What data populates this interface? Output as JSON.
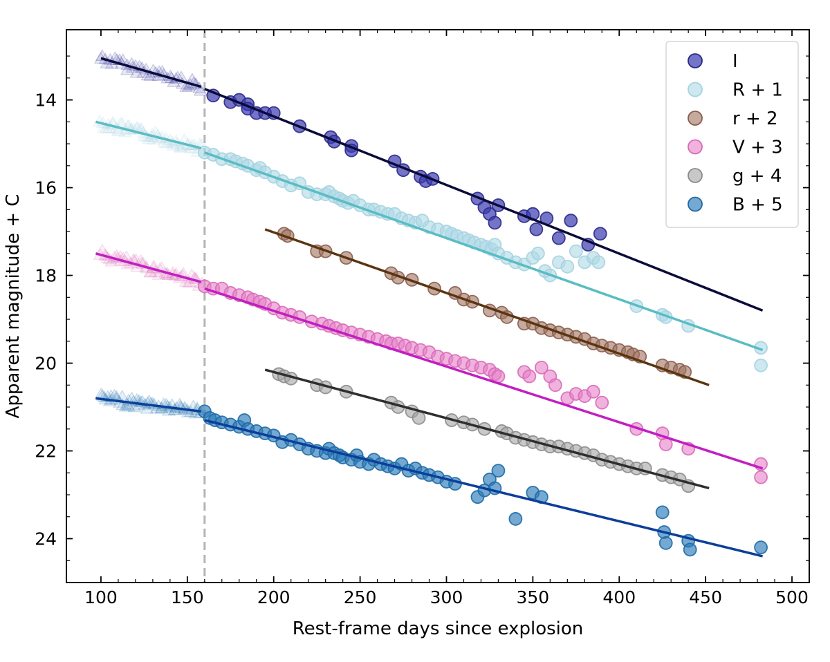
{
  "chart_data": {
    "type": "scatter",
    "title": "",
    "xlabel": "Rest-frame days since explosion",
    "ylabel": "Apparent magnitude + C",
    "xlim": [
      80,
      510
    ],
    "ylim": [
      12.4,
      25.0
    ],
    "y_inverted": true,
    "xticks": [
      100,
      150,
      200,
      250,
      300,
      350,
      400,
      450,
      500
    ],
    "yticks": [
      14,
      16,
      18,
      20,
      22,
      24
    ],
    "vline": {
      "x": 160,
      "style": "dashed",
      "color": "#b4b4b4"
    },
    "legend_position": "top-right",
    "series": [
      {
        "name": "I",
        "label": "I",
        "color": "#3b3bb0",
        "edge": "#2a2a8a",
        "line_color": "#0b0b3b",
        "alpha": 0.7,
        "early_range": [
          100,
          158
        ],
        "early_count": 45,
        "early_fit": [
          [
            100,
            13.05
          ],
          [
            158,
            13.7
          ]
        ],
        "points": [
          [
            165,
            13.9
          ],
          [
            175,
            14.05
          ],
          [
            180,
            14.0
          ],
          [
            185,
            14.1
          ],
          [
            185,
            14.2
          ],
          [
            190,
            14.3
          ],
          [
            195,
            14.3
          ],
          [
            200,
            14.3
          ],
          [
            215,
            14.6
          ],
          [
            233,
            14.85
          ],
          [
            235,
            14.95
          ],
          [
            245,
            15.05
          ],
          [
            245,
            15.15
          ],
          [
            270,
            15.4
          ],
          [
            275,
            15.6
          ],
          [
            285,
            15.75
          ],
          [
            288,
            15.85
          ],
          [
            292,
            15.8
          ],
          [
            318,
            16.25
          ],
          [
            322,
            16.45
          ],
          [
            325,
            16.6
          ],
          [
            328,
            16.8
          ],
          [
            330,
            16.4
          ],
          [
            345,
            16.65
          ],
          [
            350,
            16.6
          ],
          [
            352,
            16.95
          ],
          [
            358,
            16.7
          ],
          [
            365,
            17.15
          ],
          [
            372,
            16.75
          ],
          [
            382,
            17.3
          ],
          [
            389,
            17.05
          ]
        ],
        "fit": [
          [
            160,
            13.75
          ],
          [
            483,
            18.8
          ]
        ]
      },
      {
        "name": "R + 1",
        "label": "R + 1",
        "color": "#add8e6",
        "edge": "#a6d3e0",
        "line_color": "#5bbcc3",
        "alpha": 0.6,
        "early_range": [
          100,
          158
        ],
        "early_count": 55,
        "early_fit": [
          [
            97,
            14.5
          ],
          [
            158,
            15.1
          ]
        ],
        "points": [
          [
            160,
            15.2
          ],
          [
            165,
            15.25
          ],
          [
            170,
            15.35
          ],
          [
            175,
            15.35
          ],
          [
            178,
            15.4
          ],
          [
            182,
            15.45
          ],
          [
            185,
            15.5
          ],
          [
            190,
            15.6
          ],
          [
            192,
            15.55
          ],
          [
            195,
            15.65
          ],
          [
            200,
            15.75
          ],
          [
            205,
            15.85
          ],
          [
            210,
            15.95
          ],
          [
            215,
            15.9
          ],
          [
            220,
            16.1
          ],
          [
            225,
            16.15
          ],
          [
            230,
            16.15
          ],
          [
            232,
            16.1
          ],
          [
            235,
            16.2
          ],
          [
            238,
            16.25
          ],
          [
            240,
            16.3
          ],
          [
            243,
            16.35
          ],
          [
            246,
            16.3
          ],
          [
            250,
            16.4
          ],
          [
            255,
            16.5
          ],
          [
            258,
            16.5
          ],
          [
            262,
            16.55
          ],
          [
            266,
            16.6
          ],
          [
            270,
            16.6
          ],
          [
            274,
            16.7
          ],
          [
            278,
            16.75
          ],
          [
            282,
            16.8
          ],
          [
            286,
            16.75
          ],
          [
            290,
            16.9
          ],
          [
            295,
            16.95
          ],
          [
            300,
            17.0
          ],
          [
            303,
            17.05
          ],
          [
            306,
            17.1
          ],
          [
            310,
            17.15
          ],
          [
            313,
            17.2
          ],
          [
            316,
            17.25
          ],
          [
            320,
            17.3
          ],
          [
            323,
            17.35
          ],
          [
            326,
            17.4
          ],
          [
            328,
            17.3
          ],
          [
            330,
            17.5
          ],
          [
            335,
            17.6
          ],
          [
            340,
            17.7
          ],
          [
            345,
            17.75
          ],
          [
            350,
            17.6
          ],
          [
            353,
            17.5
          ],
          [
            357,
            17.9
          ],
          [
            360,
            18.0
          ],
          [
            365,
            17.7
          ],
          [
            370,
            17.8
          ],
          [
            375,
            17.45
          ],
          [
            380,
            17.7
          ],
          [
            385,
            17.6
          ],
          [
            388,
            17.7
          ],
          [
            410,
            18.7
          ],
          [
            425,
            18.9
          ],
          [
            427,
            18.95
          ],
          [
            440,
            19.15
          ],
          [
            482,
            19.65
          ],
          [
            482,
            20.05
          ]
        ],
        "fit": [
          [
            160,
            15.2
          ],
          [
            483,
            19.7
          ]
        ]
      },
      {
        "name": "r + 2",
        "label": "r + 2",
        "color": "#a0725f",
        "edge": "#8a5e4c",
        "line_color": "#5a3510",
        "alpha": 0.6,
        "points": [
          [
            206,
            17.05
          ],
          [
            208,
            17.1
          ],
          [
            225,
            17.45
          ],
          [
            230,
            17.45
          ],
          [
            242,
            17.6
          ],
          [
            268,
            17.95
          ],
          [
            272,
            18.05
          ],
          [
            280,
            18.1
          ],
          [
            293,
            18.3
          ],
          [
            305,
            18.4
          ],
          [
            310,
            18.55
          ],
          [
            315,
            18.6
          ],
          [
            325,
            18.8
          ],
          [
            332,
            18.85
          ],
          [
            335,
            18.95
          ],
          [
            345,
            19.1
          ],
          [
            350,
            19.1
          ],
          [
            355,
            19.2
          ],
          [
            360,
            19.25
          ],
          [
            365,
            19.3
          ],
          [
            370,
            19.35
          ],
          [
            375,
            19.4
          ],
          [
            380,
            19.45
          ],
          [
            385,
            19.55
          ],
          [
            390,
            19.6
          ],
          [
            395,
            19.65
          ],
          [
            400,
            19.7
          ],
          [
            405,
            19.75
          ],
          [
            408,
            19.8
          ],
          [
            412,
            19.85
          ],
          [
            425,
            20.05
          ],
          [
            430,
            20.1
          ],
          [
            435,
            20.15
          ],
          [
            438,
            20.2
          ]
        ],
        "fit": [
          [
            195,
            16.95
          ],
          [
            452,
            20.5
          ]
        ]
      },
      {
        "name": "V + 3",
        "label": "V + 3",
        "color": "#e680c8",
        "edge": "#d86ab8",
        "line_color": "#c11fc1",
        "alpha": 0.6,
        "early_range": [
          100,
          158
        ],
        "early_count": 55,
        "early_fit": [
          [
            97,
            17.5
          ],
          [
            158,
            18.15
          ]
        ],
        "points": [
          [
            160,
            18.25
          ],
          [
            165,
            18.3
          ],
          [
            170,
            18.3
          ],
          [
            175,
            18.4
          ],
          [
            180,
            18.45
          ],
          [
            185,
            18.5
          ],
          [
            188,
            18.55
          ],
          [
            192,
            18.6
          ],
          [
            195,
            18.65
          ],
          [
            200,
            18.75
          ],
          [
            205,
            18.85
          ],
          [
            210,
            18.9
          ],
          [
            215,
            18.95
          ],
          [
            222,
            19.05
          ],
          [
            228,
            19.1
          ],
          [
            232,
            19.15
          ],
          [
            236,
            19.2
          ],
          [
            240,
            19.25
          ],
          [
            245,
            19.3
          ],
          [
            250,
            19.35
          ],
          [
            255,
            19.4
          ],
          [
            260,
            19.45
          ],
          [
            265,
            19.5
          ],
          [
            268,
            19.55
          ],
          [
            272,
            19.55
          ],
          [
            276,
            19.6
          ],
          [
            280,
            19.65
          ],
          [
            285,
            19.7
          ],
          [
            290,
            19.75
          ],
          [
            295,
            19.85
          ],
          [
            300,
            19.9
          ],
          [
            305,
            19.95
          ],
          [
            310,
            20.0
          ],
          [
            315,
            20.05
          ],
          [
            320,
            20.1
          ],
          [
            325,
            20.15
          ],
          [
            328,
            20.25
          ],
          [
            330,
            20.3
          ],
          [
            345,
            20.2
          ],
          [
            348,
            20.3
          ],
          [
            355,
            20.1
          ],
          [
            360,
            20.3
          ],
          [
            363,
            20.5
          ],
          [
            370,
            20.8
          ],
          [
            375,
            20.7
          ],
          [
            380,
            20.75
          ],
          [
            385,
            20.65
          ],
          [
            390,
            20.9
          ],
          [
            410,
            21.5
          ],
          [
            425,
            21.6
          ],
          [
            427,
            21.85
          ],
          [
            440,
            21.95
          ],
          [
            482,
            22.3
          ],
          [
            482,
            22.6
          ]
        ],
        "fit": [
          [
            160,
            18.3
          ],
          [
            483,
            22.4
          ]
        ]
      },
      {
        "name": "g + 4",
        "label": "g + 4",
        "color": "#a3a3a3",
        "edge": "#8c8c8c",
        "line_color": "#2e2e2e",
        "alpha": 0.6,
        "points": [
          [
            203,
            20.25
          ],
          [
            206,
            20.3
          ],
          [
            210,
            20.35
          ],
          [
            225,
            20.5
          ],
          [
            230,
            20.55
          ],
          [
            242,
            20.65
          ],
          [
            268,
            20.9
          ],
          [
            272,
            21.0
          ],
          [
            280,
            21.1
          ],
          [
            284,
            21.25
          ],
          [
            303,
            21.3
          ],
          [
            310,
            21.35
          ],
          [
            315,
            21.4
          ],
          [
            322,
            21.5
          ],
          [
            332,
            21.55
          ],
          [
            335,
            21.6
          ],
          [
            340,
            21.7
          ],
          [
            345,
            21.75
          ],
          [
            350,
            21.8
          ],
          [
            355,
            21.85
          ],
          [
            360,
            21.9
          ],
          [
            365,
            21.9
          ],
          [
            370,
            21.95
          ],
          [
            375,
            22.0
          ],
          [
            380,
            22.05
          ],
          [
            385,
            22.1
          ],
          [
            390,
            22.2
          ],
          [
            395,
            22.25
          ],
          [
            400,
            22.3
          ],
          [
            405,
            22.35
          ],
          [
            410,
            22.4
          ],
          [
            415,
            22.4
          ],
          [
            425,
            22.55
          ],
          [
            430,
            22.6
          ],
          [
            435,
            22.65
          ],
          [
            440,
            22.8
          ]
        ],
        "fit": [
          [
            195,
            20.15
          ],
          [
            452,
            22.85
          ]
        ]
      },
      {
        "name": "B + 5",
        "label": "B + 5",
        "color": "#2b7bba",
        "edge": "#1f6aa5",
        "line_color": "#0b3f9a",
        "alpha": 0.65,
        "early_range": [
          100,
          158
        ],
        "early_count": 60,
        "early_fit": [
          [
            97,
            20.8
          ],
          [
            158,
            21.1
          ]
        ],
        "points": [
          [
            160,
            21.1
          ],
          [
            163,
            21.25
          ],
          [
            166,
            21.3
          ],
          [
            170,
            21.35
          ],
          [
            175,
            21.4
          ],
          [
            180,
            21.45
          ],
          [
            183,
            21.3
          ],
          [
            185,
            21.5
          ],
          [
            190,
            21.55
          ],
          [
            195,
            21.6
          ],
          [
            200,
            21.65
          ],
          [
            205,
            21.8
          ],
          [
            210,
            21.75
          ],
          [
            215,
            21.85
          ],
          [
            220,
            21.95
          ],
          [
            225,
            22.0
          ],
          [
            230,
            22.05
          ],
          [
            232,
            21.95
          ],
          [
            235,
            22.05
          ],
          [
            238,
            22.1
          ],
          [
            240,
            22.15
          ],
          [
            245,
            22.2
          ],
          [
            248,
            22.1
          ],
          [
            250,
            22.25
          ],
          [
            255,
            22.3
          ],
          [
            258,
            22.2
          ],
          [
            262,
            22.3
          ],
          [
            266,
            22.35
          ],
          [
            270,
            22.4
          ],
          [
            274,
            22.3
          ],
          [
            278,
            22.45
          ],
          [
            282,
            22.4
          ],
          [
            286,
            22.5
          ],
          [
            290,
            22.55
          ],
          [
            295,
            22.6
          ],
          [
            300,
            22.7
          ],
          [
            305,
            22.75
          ],
          [
            318,
            23.05
          ],
          [
            322,
            22.9
          ],
          [
            325,
            22.65
          ],
          [
            328,
            22.85
          ],
          [
            330,
            22.45
          ],
          [
            340,
            23.55
          ],
          [
            350,
            22.95
          ],
          [
            355,
            23.05
          ],
          [
            425,
            23.4
          ],
          [
            426,
            23.85
          ],
          [
            427,
            24.1
          ],
          [
            440,
            24.05
          ],
          [
            441,
            24.25
          ],
          [
            482,
            24.2
          ]
        ],
        "fit": [
          [
            160,
            21.3
          ],
          [
            483,
            24.4
          ]
        ]
      }
    ]
  }
}
